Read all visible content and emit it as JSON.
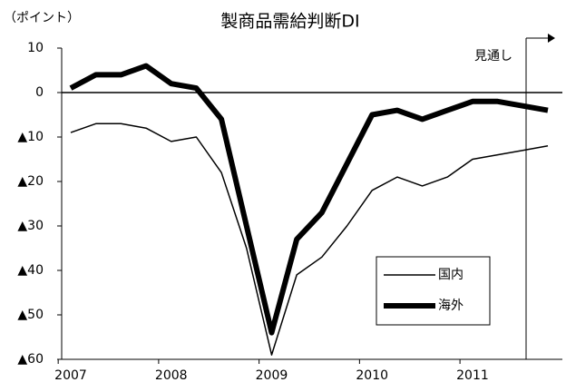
{
  "chart_data": {
    "type": "line",
    "title": "製商品需給判断DI",
    "y_axis_label": "（ポイント）",
    "annotation": "見通し",
    "categories": [
      "2007",
      null,
      null,
      null,
      "2008",
      null,
      null,
      null,
      "2009",
      null,
      null,
      null,
      "2010",
      null,
      null,
      null,
      "2011",
      null,
      null,
      null
    ],
    "series": [
      {
        "name": "国内",
        "color": "#000000",
        "width": 1.5,
        "values": [
          -9,
          -7,
          -7,
          -8,
          -11,
          -10,
          -18,
          -35,
          -59,
          -41,
          -37,
          -30,
          -22,
          -19,
          -21,
          -19,
          -15,
          -14,
          -13,
          -12
        ]
      },
      {
        "name": "海外",
        "color": "#000000",
        "width": 6,
        "values": [
          1,
          4,
          4,
          6,
          2,
          1,
          -6,
          -30,
          -54,
          -33,
          -27,
          -16,
          -5,
          -4,
          -6,
          -4,
          -2,
          -2,
          -3,
          -4
        ]
      }
    ],
    "ylim": [
      -60,
      10
    ],
    "yticks": [
      10,
      0,
      {
        "value": -10,
        "label": "▲10"
      },
      {
        "value": -20,
        "label": "▲20"
      },
      {
        "value": -30,
        "label": "▲30"
      },
      {
        "value": -40,
        "label": "▲40"
      },
      {
        "value": -50,
        "label": "▲50"
      },
      {
        "value": -60,
        "label": "▲60"
      }
    ],
    "zero_line": true,
    "legend_position": "lower right"
  }
}
